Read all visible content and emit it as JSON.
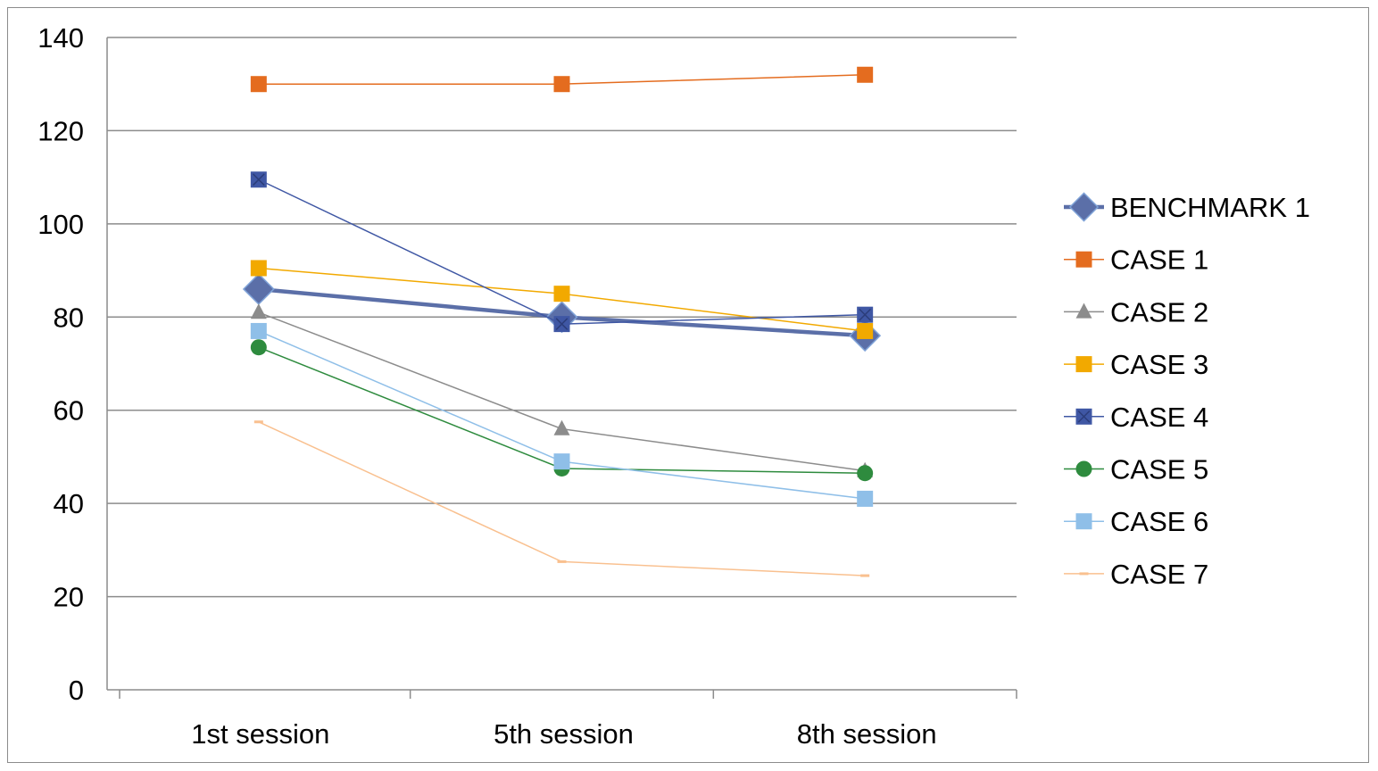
{
  "chart_data": {
    "type": "line",
    "categories": [
      "1st session",
      "5th session",
      "8th session"
    ],
    "ylim": [
      0,
      140
    ],
    "yticks": [
      0,
      20,
      40,
      60,
      80,
      100,
      120,
      140
    ],
    "grid": "horizontal",
    "legend_position": "right",
    "series": [
      {
        "name": "BENCHMARK 1",
        "values": [
          86,
          80,
          76
        ],
        "color": "#5b6fa8",
        "marker": "diamond"
      },
      {
        "name": "CASE 1",
        "values": [
          130,
          130,
          132
        ],
        "color": "#e46c1f",
        "marker": "square"
      },
      {
        "name": "CASE 2",
        "values": [
          81,
          56,
          47
        ],
        "color": "#8c8c8c",
        "marker": "triangle"
      },
      {
        "name": "CASE 3",
        "values": [
          90.5,
          85,
          77
        ],
        "color": "#f2a900",
        "marker": "square"
      },
      {
        "name": "CASE 4",
        "values": [
          109.5,
          78.5,
          80.5
        ],
        "color": "#3f57a4",
        "marker": "x-square"
      },
      {
        "name": "CASE 5",
        "values": [
          73.5,
          47.5,
          46.5
        ],
        "color": "#2e8b3e",
        "marker": "circle"
      },
      {
        "name": "CASE 6",
        "values": [
          77,
          49,
          41
        ],
        "color": "#8fbfe8",
        "marker": "square"
      },
      {
        "name": "CASE 7",
        "values": [
          57.5,
          27.5,
          24.5
        ],
        "color": "#f9c08f",
        "marker": "dash"
      }
    ]
  }
}
